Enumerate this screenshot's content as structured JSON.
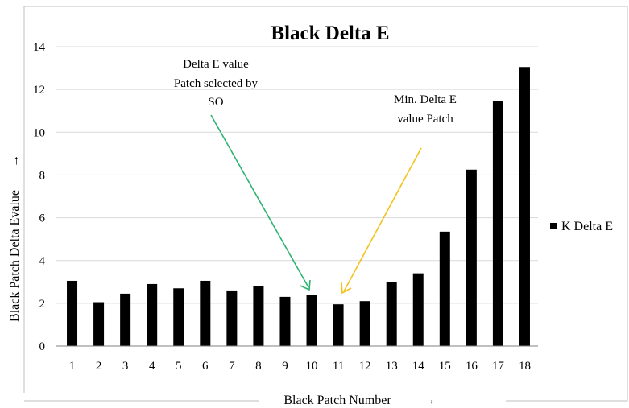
{
  "chart_data": {
    "type": "bar",
    "title": "Black Delta E",
    "xlabel": "Black Patch Number",
    "xlabel_arrow": "→",
    "ylabel": "Black Patch Delta Evalue",
    "ylabel_arrow": "→",
    "categories": [
      "1",
      "2",
      "3",
      "4",
      "5",
      "6",
      "7",
      "8",
      "9",
      "10",
      "11",
      "12",
      "13",
      "14",
      "15",
      "16",
      "17",
      "18"
    ],
    "series": [
      {
        "name": "K Delta E",
        "values": [
          3.05,
          2.05,
          2.45,
          2.9,
          2.7,
          3.05,
          2.6,
          2.8,
          2.3,
          2.4,
          1.95,
          2.1,
          3.0,
          3.4,
          5.35,
          8.25,
          11.45,
          13.05
        ]
      }
    ],
    "y_ticks": [
      "0",
      "2",
      "4",
      "6",
      "8",
      "10",
      "12",
      "14"
    ],
    "ylim": [
      0,
      14
    ],
    "grid": true,
    "legend_position": "right",
    "colors": {
      "bar": "#000000",
      "grid": "#d9d9d9",
      "green_arrow": "#2db36f",
      "yellow_arrow": "#f2c21b"
    },
    "annotations": [
      {
        "lines": [
          "Delta E value",
          "Patch selected by",
          "SO"
        ],
        "target_category": "10",
        "color": "green"
      },
      {
        "lines": [
          "Min. Delta E",
          "value Patch"
        ],
        "target_category": "11",
        "color": "yellow"
      }
    ]
  }
}
